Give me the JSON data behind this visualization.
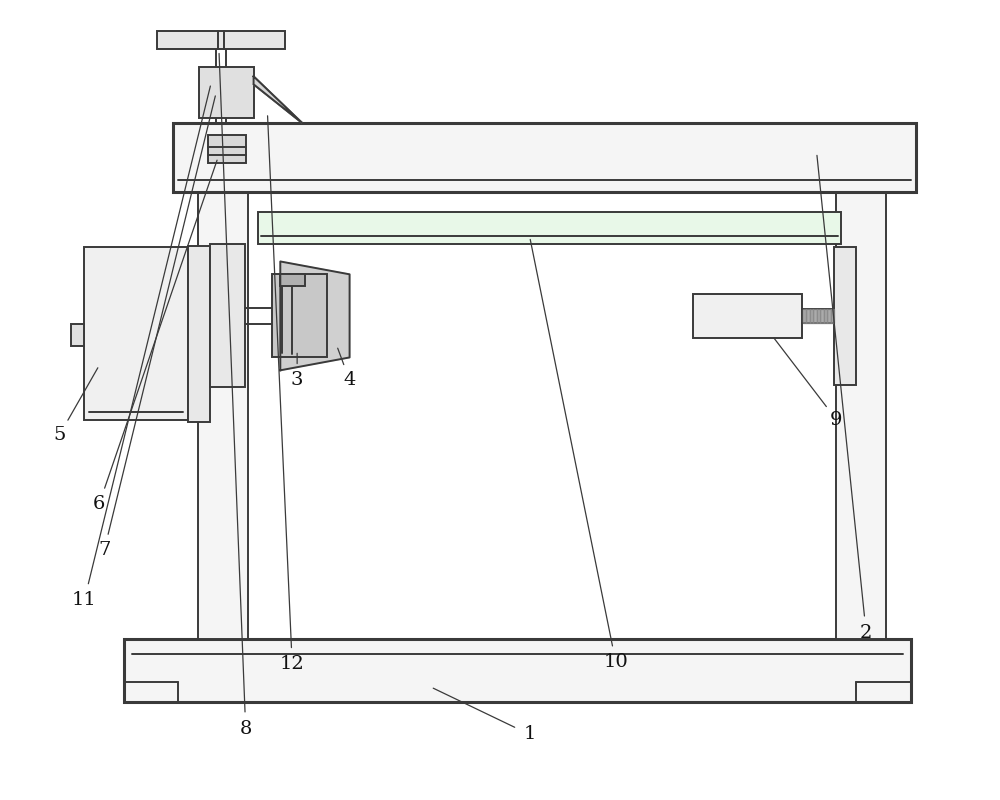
{
  "bg_color": "#ffffff",
  "line_color": "#3a3a3a",
  "lw": 1.4,
  "lw_thick": 2.2,
  "fig_width": 10.0,
  "fig_height": 8.0
}
